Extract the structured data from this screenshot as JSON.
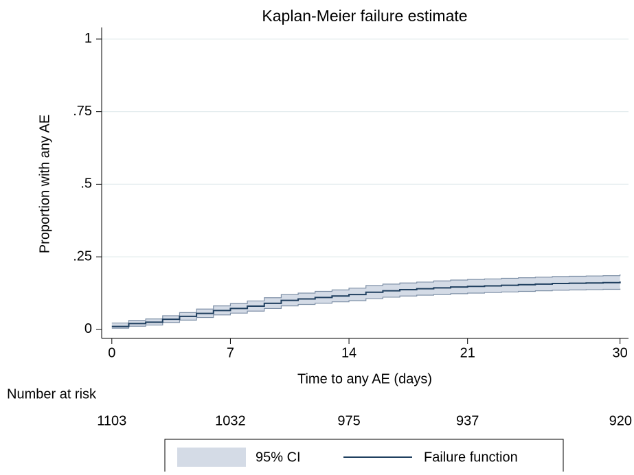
{
  "chart_data": {
    "type": "km",
    "title": "Kaplan-Meier failure estimate",
    "x_label": "Time to any AE (days)",
    "y_label": "Proportion with any AE",
    "x": [
      0,
      1,
      2,
      3,
      4,
      5,
      6,
      7,
      8,
      9,
      10,
      11,
      12,
      13,
      14,
      15,
      16,
      17,
      18,
      19,
      20,
      21,
      22,
      23,
      24,
      25,
      26,
      27,
      28,
      29,
      30
    ],
    "series": [
      {
        "name": "Failure function",
        "color": "#1f3f5f",
        "values": [
          0.01,
          0.02,
          0.025,
          0.035,
          0.045,
          0.055,
          0.065,
          0.072,
          0.08,
          0.09,
          0.1,
          0.105,
          0.11,
          0.115,
          0.12,
          0.128,
          0.133,
          0.137,
          0.14,
          0.143,
          0.146,
          0.148,
          0.15,
          0.152,
          0.154,
          0.156,
          0.158,
          0.159,
          0.16,
          0.161,
          0.165
        ]
      }
    ],
    "ci": {
      "name": "95% CI",
      "color": "#d4dbe6",
      "lower": [
        0.004,
        0.011,
        0.015,
        0.024,
        0.032,
        0.041,
        0.05,
        0.056,
        0.063,
        0.072,
        0.081,
        0.086,
        0.09,
        0.095,
        0.099,
        0.106,
        0.111,
        0.115,
        0.118,
        0.12,
        0.123,
        0.125,
        0.127,
        0.129,
        0.131,
        0.133,
        0.135,
        0.136,
        0.137,
        0.138,
        0.14
      ],
      "upper": [
        0.022,
        0.031,
        0.036,
        0.047,
        0.058,
        0.07,
        0.081,
        0.089,
        0.098,
        0.109,
        0.12,
        0.125,
        0.131,
        0.136,
        0.142,
        0.151,
        0.156,
        0.16,
        0.163,
        0.167,
        0.17,
        0.172,
        0.174,
        0.176,
        0.178,
        0.18,
        0.182,
        0.183,
        0.184,
        0.185,
        0.19
      ]
    },
    "xlim": [
      -0.6,
      30.5
    ],
    "ylim": [
      -0.031,
      1.04
    ],
    "xticks": [
      0,
      7,
      14,
      21,
      30
    ],
    "yticks": [
      0,
      {
        "value": 0.25,
        "label": ".25"
      },
      {
        "value": 0.5,
        "label": ".5"
      },
      {
        "value": 0.75,
        "label": ".75"
      },
      1
    ],
    "grid": true,
    "at_risk": {
      "label": "Number at risk",
      "x": [
        0,
        7,
        14,
        21,
        30
      ],
      "values": [
        1103,
        1032,
        975,
        937,
        920
      ]
    }
  }
}
